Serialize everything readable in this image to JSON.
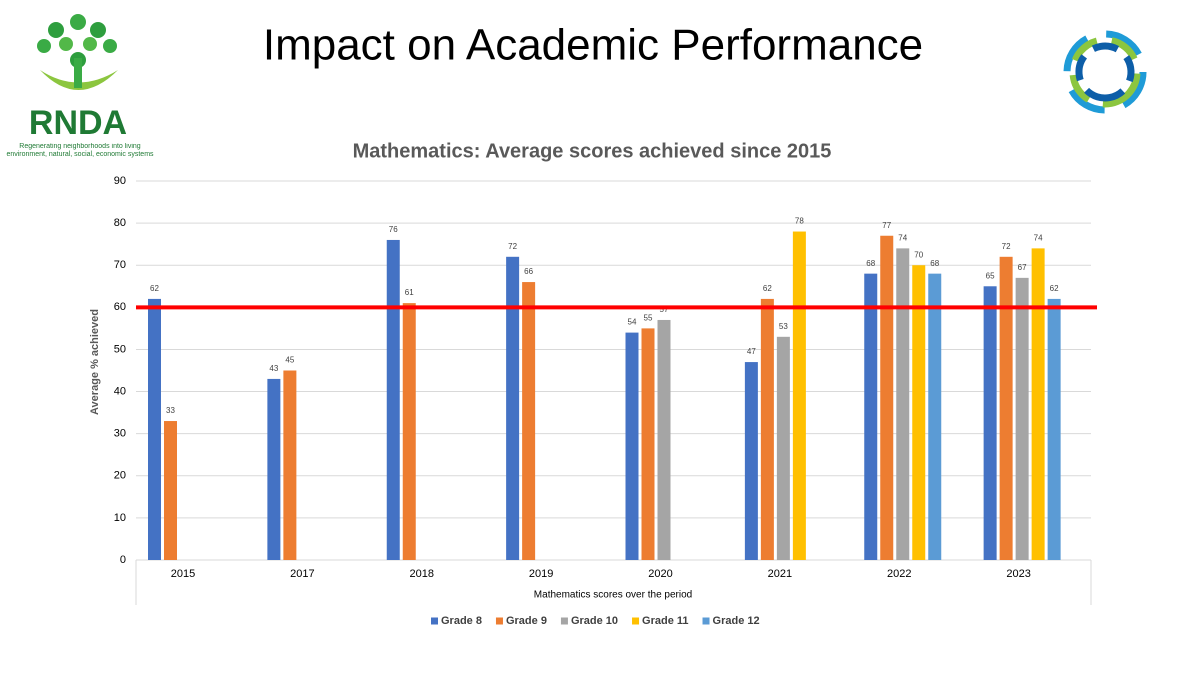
{
  "header": {
    "title": "Impact on Academic Performance",
    "logo_text": "RNDA",
    "logo_caption": "Regenerating neighborhoods into living environment, natural, social, economic systems"
  },
  "chart_data": {
    "type": "bar",
    "title": "Mathematics: Average scores achieved since 2015",
    "x_label": "Mathematics scores over the period",
    "y_label": "Average % achieved",
    "categories": [
      "2015",
      "2017",
      "2018",
      "2019",
      "2020",
      "2021",
      "2022",
      "2023"
    ],
    "series": [
      {
        "name": "Grade 8",
        "color": "#4472c4",
        "values": [
          62,
          43,
          76,
          72,
          54,
          47,
          68,
          65
        ]
      },
      {
        "name": "Grade 9",
        "color": "#ed7d31",
        "values": [
          33,
          45,
          61,
          66,
          55,
          62,
          77,
          72
        ]
      },
      {
        "name": "Grade 10",
        "color": "#a5a5a5",
        "values": [
          null,
          null,
          null,
          null,
          57,
          53,
          74,
          67
        ]
      },
      {
        "name": "Grade 11",
        "color": "#ffc000",
        "values": [
          null,
          null,
          null,
          null,
          null,
          78,
          70,
          74
        ]
      },
      {
        "name": "Grade 12",
        "color": "#5b9bd5",
        "values": [
          null,
          null,
          null,
          null,
          null,
          null,
          68,
          62
        ]
      }
    ],
    "ylim": [
      0,
      90
    ],
    "yticks": [
      0,
      10,
      20,
      30,
      40,
      50,
      60,
      70,
      80,
      90
    ],
    "grid": true,
    "reference_line": {
      "value": 60,
      "color": "#ff0000"
    },
    "legend": "bottom"
  }
}
